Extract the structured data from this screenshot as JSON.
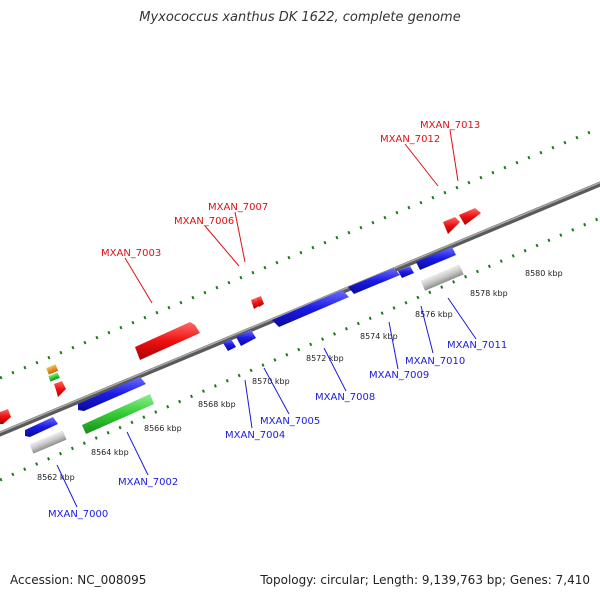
{
  "title": "Myxococcus xanthus DK 1622, complete genome",
  "footer": {
    "accession": "Accession: NC_008095",
    "summary": "Topology: circular; Length: 9,139,763 bp; Genes: 7,410"
  },
  "colors": {
    "forward_gene": "#ee1111",
    "reverse_gene": "#1a1ae6",
    "rna_gene": "#33cc33",
    "pseudogene": "#c8c8c8",
    "feature_orange": "#ee8a00",
    "backbone": "#777777",
    "ticks": "#1b7a1b"
  },
  "scale_labels": [
    "8562 kbp",
    "8564 kbp",
    "8566 kbp",
    "8568 kbp",
    "8570 kbp",
    "8572 kbp",
    "8574 kbp",
    "8576 kbp",
    "8578 kbp",
    "8580 kbp"
  ],
  "gene_labels_top": [
    "MXAN_7003",
    "MXAN_7006",
    "MXAN_7007",
    "MXAN_7012",
    "MXAN_7013"
  ],
  "gene_labels_bottom": [
    "MXAN_7000",
    "MXAN_7002",
    "MXAN_7004",
    "MXAN_7005",
    "MXAN_7008",
    "MXAN_7009",
    "MXAN_7010",
    "MXAN_7011"
  ]
}
